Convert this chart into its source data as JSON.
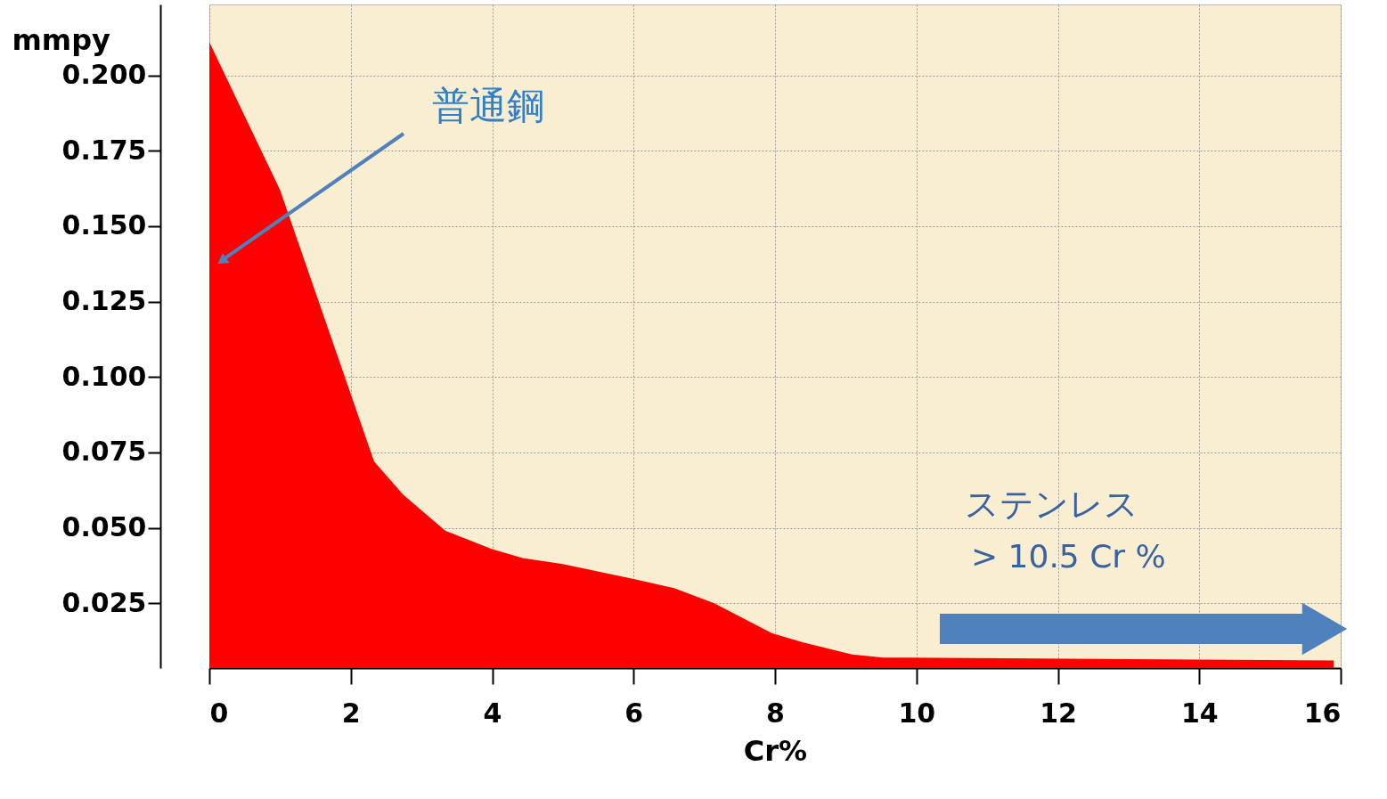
{
  "chart_data": {
    "type": "area",
    "xlabel": "Cr%",
    "ylabel": "mmpy",
    "x": [
      0,
      1,
      2.33,
      2.74,
      3.34,
      3.99,
      4.43,
      5.0,
      6.0,
      6.57,
      7.14,
      7.96,
      8.4,
      9.09,
      9.53,
      15.9
    ],
    "series": [
      {
        "color": "#ff0000",
        "values": [
          0.211,
          0.162,
          0.072,
          0.061,
          0.049,
          0.043,
          0.04,
          0.038,
          0.033,
          0.03,
          0.025,
          0.015,
          0.012,
          0.008,
          0.007,
          0.006
        ]
      }
    ],
    "xlim": [
      0,
      16
    ],
    "xticks": [
      0,
      2,
      4,
      6,
      8,
      10,
      12,
      14,
      16
    ],
    "ylim": [
      0.0035,
      0.2235
    ],
    "yticks": [
      {
        "value": 0.025,
        "label": "0.025"
      },
      {
        "value": 0.05,
        "label": "0.050"
      },
      {
        "value": 0.075,
        "label": "0.075"
      },
      {
        "value": 0.1,
        "label": "0.100"
      },
      {
        "value": 0.125,
        "label": "0.125"
      },
      {
        "value": 0.15,
        "label": "0.150"
      },
      {
        "value": 0.175,
        "label": "0.175"
      },
      {
        "value": 0.2,
        "label": "0.200"
      }
    ],
    "grid": true,
    "annotations": [
      "普通鋼",
      "ステンレス",
      "> 10.5 Cr %"
    ]
  }
}
